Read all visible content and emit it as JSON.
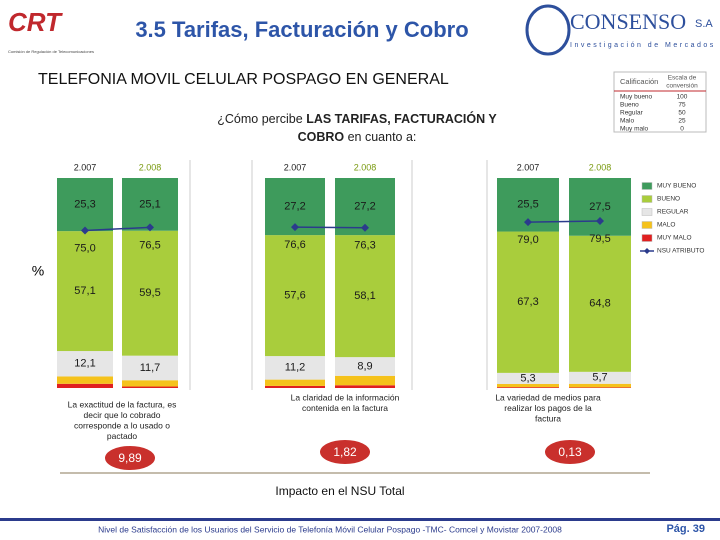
{
  "header": {
    "logo_left": "CRT",
    "logo_left_sub": "Comisión de Regulación de Telecomunicaciones",
    "title": "3.5 Tarifas, Facturación y Cobro",
    "logo_right": "CONSENSO",
    "logo_right_suffix": "S.A",
    "logo_right_sub": "Investigación de Mercados"
  },
  "subtitle": "TELEFONIA MOVIL CELULAR POSPAGO EN GENERAL",
  "question": {
    "line1": [
      "¿Cómo percibe ",
      "LAS TARIFAS, FACTURACIÓN Y"
    ],
    "line2": [
      "COBRO",
      " en cuanto a:"
    ]
  },
  "scale_table": {
    "headers": [
      "Calificación",
      "Escala de",
      "conversión"
    ],
    "rows": [
      [
        "Muy bueno",
        100
      ],
      [
        "Bueno",
        75
      ],
      [
        "Regular",
        50
      ],
      [
        "Malo",
        25
      ],
      [
        "Muy malo",
        0
      ]
    ]
  },
  "chart_data": [
    {
      "type": "stacked_bar",
      "y_label": "%",
      "categories": [
        "2.007",
        "2.008"
      ],
      "ylim": [
        0,
        100
      ],
      "series": [
        {
          "name": "MUY MALO",
          "color": "#e02020",
          "values": [
            2,
            0.7
          ],
          "value_labels": [
            null,
            null
          ]
        },
        {
          "name": "MALO",
          "color": "#f5c21b",
          "values": [
            3.5,
            3
          ],
          "value_labels": [
            null,
            null
          ]
        },
        {
          "name": "REGULAR",
          "color": "#e6e6e6",
          "values": [
            12.1,
            11.7
          ],
          "value_labels": [
            "12,1",
            "11,7"
          ]
        },
        {
          "name": "BUENO",
          "color": "#a9cd3c",
          "values": [
            57.1,
            59.5
          ],
          "value_labels": [
            "57,1",
            "59,5"
          ]
        },
        {
          "name": "MUY BUENO",
          "color": "#3e9b5c",
          "values": [
            25.3,
            25.1
          ],
          "value_labels": [
            "25,3",
            "25,1"
          ]
        }
      ],
      "line": {
        "name": "NSU ATRIBUTO",
        "color": "#2b3b8c",
        "values": [
          75.0,
          76.5
        ],
        "value_labels": [
          "75,0",
          "76,5"
        ]
      },
      "caption": [
        "La exactitud de la factura, es",
        "decir que lo cobrado",
        "corresponde a lo usado o",
        "pactado"
      ],
      "impact": {
        "value": 9.89,
        "label": "9,89"
      }
    },
    {
      "type": "stacked_bar",
      "categories": [
        "2.007",
        "2.008"
      ],
      "ylim": [
        0,
        100
      ],
      "series": [
        {
          "name": "MUY MALO",
          "color": "#e02020",
          "values": [
            1,
            1.3
          ],
          "value_labels": [
            null,
            null
          ]
        },
        {
          "name": "MALO",
          "color": "#f5c21b",
          "values": [
            3,
            4.5
          ],
          "value_labels": [
            null,
            null
          ]
        },
        {
          "name": "REGULAR",
          "color": "#e6e6e6",
          "values": [
            11.2,
            8.9
          ],
          "value_labels": [
            "11,2",
            "8,9"
          ]
        },
        {
          "name": "BUENO",
          "color": "#a9cd3c",
          "values": [
            57.6,
            58.1
          ],
          "value_labels": [
            "57,6",
            "58,1"
          ]
        },
        {
          "name": "MUY BUENO",
          "color": "#3e9b5c",
          "values": [
            27.2,
            27.2
          ],
          "value_labels": [
            "27,2",
            "27,2"
          ]
        }
      ],
      "line": {
        "name": "NSU ATRIBUTO",
        "color": "#2b3b8c",
        "values": [
          76.6,
          76.3
        ],
        "value_labels": [
          "76,6",
          "76,3"
        ]
      },
      "caption": [
        "La claridad de la información",
        "contenida en la factura"
      ],
      "impact": {
        "value": 1.82,
        "label": "1,82"
      }
    },
    {
      "type": "stacked_bar",
      "categories": [
        "2.007",
        "2.008"
      ],
      "ylim": [
        0,
        100
      ],
      "series": [
        {
          "name": "MUY MALO",
          "color": "#e02020",
          "values": [
            0.4,
            0.3
          ],
          "value_labels": [
            null,
            null
          ]
        },
        {
          "name": "MALO",
          "color": "#f5c21b",
          "values": [
            1.5,
            1.7
          ],
          "value_labels": [
            null,
            null
          ]
        },
        {
          "name": "REGULAR",
          "color": "#e6e6e6",
          "values": [
            5.3,
            5.7
          ],
          "value_labels": [
            "5,3",
            "5,7"
          ]
        },
        {
          "name": "BUENO",
          "color": "#a9cd3c",
          "values": [
            67.3,
            64.8
          ],
          "value_labels": [
            "67,3",
            "64,8"
          ]
        },
        {
          "name": "MUY BUENO",
          "color": "#3e9b5c",
          "values": [
            25.5,
            27.5
          ],
          "value_labels": [
            "25,5",
            "27,5"
          ]
        }
      ],
      "line": {
        "name": "NSU ATRIBUTO",
        "color": "#2b3b8c",
        "values": [
          79.0,
          79.5
        ],
        "value_labels": [
          "79,0",
          "79,5"
        ]
      },
      "caption": [
        "La variedad de medios para",
        "realizar los pagos de la",
        "factura"
      ],
      "impact": {
        "value": 0.13,
        "label": "0,13"
      }
    }
  ],
  "impact_title": "Impacto en el NSU Total",
  "footer": {
    "text": "Nivel de Satisfacción de los Usuarios del Servicio de Telefonía Móvil Celular Pospago -TMC- Comcel y Movistar 2007-2008",
    "page": "Pág. 39"
  }
}
